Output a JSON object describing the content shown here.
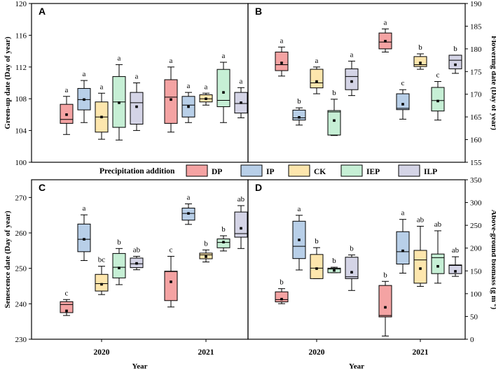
{
  "chart_data": {
    "type": "box",
    "xlabel": "Year",
    "legend": {
      "title": "Precipitation addition",
      "groups": [
        "DP",
        "IP",
        "CK",
        "IEP",
        "ILP"
      ],
      "colors": [
        "#f4a3a3",
        "#b8cfe8",
        "#fde6ad",
        "#c6efd5",
        "#d4d4e6"
      ]
    },
    "years": [
      "2020",
      "2021"
    ],
    "panels": [
      {
        "letter": "A",
        "ylabel": "Green-up date (Day of year)",
        "axis_side": "left",
        "ylim": [
          100,
          120
        ],
        "ticks": [
          100,
          104,
          108,
          112,
          116,
          120
        ],
        "boxes": {
          "2020": [
            {
              "min": 103.5,
              "q1": 104.9,
              "median": 105.4,
              "q3": 107.3,
              "max": 108.3,
              "mean": 106.0,
              "label": "a"
            },
            {
              "min": 105.0,
              "q1": 106.6,
              "median": 107.9,
              "q3": 109.3,
              "max": 110.3,
              "mean": 107.9,
              "label": "a"
            },
            {
              "min": 102.9,
              "q1": 103.8,
              "median": 105.7,
              "q3": 107.6,
              "max": 108.7,
              "mean": 105.7,
              "label": "a"
            },
            {
              "min": 102.8,
              "q1": 104.4,
              "median": 107.6,
              "q3": 110.8,
              "max": 112.3,
              "mean": 107.5,
              "label": "a"
            },
            {
              "min": 104.0,
              "q1": 104.8,
              "median": 107.5,
              "q3": 108.8,
              "max": 110.0,
              "mean": 107.0,
              "label": "a"
            }
          ],
          "2021": [
            {
              "min": 103.8,
              "q1": 104.9,
              "median": 108.2,
              "q3": 110.4,
              "max": 112.0,
              "mean": 107.9,
              "label": "a"
            },
            {
              "min": 105.0,
              "q1": 105.7,
              "median": 107.2,
              "q3": 108.3,
              "max": 108.8,
              "mean": 107.0,
              "label": "a"
            },
            {
              "min": 107.2,
              "q1": 107.6,
              "median": 108.0,
              "q3": 108.5,
              "max": 108.7,
              "mean": 108.0,
              "label": "a"
            },
            {
              "min": 105.0,
              "q1": 107.0,
              "median": 107.8,
              "q3": 111.7,
              "max": 112.6,
              "mean": 108.8,
              "label": "a"
            },
            {
              "min": 105.6,
              "q1": 106.2,
              "median": 107.4,
              "q3": 108.8,
              "max": 109.4,
              "mean": 107.5,
              "label": "a"
            }
          ]
        }
      },
      {
        "letter": "B",
        "ylabel": "Flowering date (Day of year)",
        "axis_side": "right",
        "ylim": [
          155,
          190
        ],
        "ticks": [
          155,
          160,
          165,
          170,
          175,
          180,
          185,
          190
        ],
        "boxes": {
          "2020": [
            {
              "min": 174.0,
              "q1": 175.2,
              "median": 176.5,
              "q3": 179.3,
              "max": 180.4,
              "mean": 176.9,
              "label": "a"
            },
            {
              "min": 163.2,
              "q1": 164.3,
              "median": 164.8,
              "q3": 166.5,
              "max": 167.0,
              "mean": 164.9,
              "label": "b"
            },
            {
              "min": 170.1,
              "q1": 171.4,
              "median": 172.5,
              "q3": 175.5,
              "max": 176.0,
              "mean": 172.8,
              "label": "a"
            },
            {
              "min": 160.9,
              "q1": 161.0,
              "median": 166.1,
              "q3": 166.4,
              "max": 168.9,
              "mean": 164.2,
              "label": "b"
            },
            {
              "min": 169.7,
              "q1": 171.0,
              "median": 173.9,
              "q3": 175.6,
              "max": 177.3,
              "mean": 172.8,
              "label": "a"
            }
          ],
          "2021": [
            {
              "min": 179.3,
              "q1": 180.0,
              "median": 181.5,
              "q3": 183.5,
              "max": 184.4,
              "mean": 181.7,
              "label": "a"
            },
            {
              "min": 164.5,
              "q1": 166.6,
              "median": 166.9,
              "q3": 170.1,
              "max": 171.0,
              "mean": 167.8,
              "label": "c"
            },
            {
              "min": 175.5,
              "q1": 176.1,
              "median": 176.5,
              "q3": 178.3,
              "max": 178.9,
              "mean": 176.9,
              "label": "b"
            },
            {
              "min": 164.3,
              "q1": 166.3,
              "median": 168.6,
              "q3": 171.5,
              "max": 172.8,
              "mean": 168.5,
              "label": "c"
            },
            {
              "min": 174.6,
              "q1": 175.6,
              "median": 177.5,
              "q3": 178.6,
              "max": 178.6,
              "mean": 176.5,
              "label": "b"
            }
          ]
        }
      },
      {
        "letter": "C",
        "ylabel": "Senescence date (Day of year)",
        "axis_side": "left",
        "ylim": [
          230,
          275
        ],
        "ticks": [
          230,
          240,
          250,
          260,
          270
        ],
        "boxes": {
          "2020": [
            {
              "min": 236.7,
              "q1": 237.5,
              "median": 239.8,
              "q3": 240.6,
              "max": 241.2,
              "mean": 238.0,
              "label": "c"
            },
            {
              "min": 252.2,
              "q1": 254.7,
              "median": 258.2,
              "q3": 262.5,
              "max": 265.1,
              "mean": 258.2,
              "label": "a"
            },
            {
              "min": 242.6,
              "q1": 243.6,
              "median": 245.7,
              "q3": 248.3,
              "max": 250.6,
              "mean": 245.5,
              "label": "bc"
            },
            {
              "min": 245.4,
              "q1": 247.3,
              "median": 250.3,
              "q3": 254.2,
              "max": 255.6,
              "mean": 250.1,
              "label": "b"
            },
            {
              "min": 249.6,
              "q1": 250.2,
              "median": 251.3,
              "q3": 252.9,
              "max": 253.4,
              "mean": 251.4,
              "label": "ab"
            }
          ],
          "2021": [
            {
              "min": 239.1,
              "q1": 240.9,
              "median": 249.1,
              "q3": 249.2,
              "max": 253.4,
              "mean": 246.2,
              "label": "c"
            },
            {
              "min": 262.4,
              "q1": 263.6,
              "median": 265.5,
              "q3": 267.0,
              "max": 268.2,
              "mean": 265.5,
              "label": "a"
            },
            {
              "min": 251.8,
              "q1": 252.7,
              "median": 253.8,
              "q3": 254.3,
              "max": 255.2,
              "mean": 253.3,
              "label": "b"
            },
            {
              "min": 254.9,
              "q1": 255.8,
              "median": 257.3,
              "q3": 258.3,
              "max": 259.2,
              "mean": 257.4,
              "label": "b"
            },
            {
              "min": 255.6,
              "q1": 258.8,
              "median": 259.8,
              "q3": 265.9,
              "max": 267.7,
              "mean": 261.3,
              "label": "ab"
            }
          ]
        }
      },
      {
        "letter": "D",
        "ylabel": "Above-ground biomass (g m⁻²)",
        "axis_side": "right",
        "ylim": [
          0,
          350
        ],
        "ticks": [
          0,
          50,
          100,
          150,
          200,
          250,
          300,
          350
        ],
        "boxes": {
          "2020": [
            {
              "min": 78,
              "q1": 82,
              "median": 87,
              "q3": 104,
              "max": 111,
              "mean": 88,
              "label": "b"
            },
            {
              "min": 152,
              "q1": 177,
              "median": 204,
              "q3": 259,
              "max": 272,
              "mean": 218,
              "label": "a"
            },
            {
              "min": 133,
              "q1": 133,
              "median": 156,
              "q3": 186,
              "max": 201,
              "mean": 155,
              "label": "b"
            },
            {
              "min": 146,
              "q1": 146,
              "median": 154,
              "q3": 156,
              "max": 158,
              "mean": 151,
              "label": "b"
            },
            {
              "min": 107,
              "q1": 133,
              "median": 137,
              "q3": 180,
              "max": 185,
              "mean": 147,
              "label": "b"
            }
          ],
          "2021": [
            {
              "min": 7,
              "q1": 49,
              "median": 52,
              "q3": 118,
              "max": 127,
              "mean": 70,
              "label": "b"
            },
            {
              "min": 145,
              "q1": 165,
              "median": 192,
              "q3": 236,
              "max": 263,
              "mean": 194,
              "label": "a"
            },
            {
              "min": 116,
              "q1": 123,
              "median": 174,
              "q3": 195,
              "max": 248,
              "mean": 155,
              "label": "ab"
            },
            {
              "min": 123,
              "q1": 144,
              "median": 179,
              "q3": 187,
              "max": 238,
              "mean": 160,
              "label": "ab"
            },
            {
              "min": 138,
              "q1": 144,
              "median": 162,
              "q3": 163,
              "max": 181,
              "mean": 149,
              "label": "ab"
            }
          ]
        }
      }
    ]
  }
}
